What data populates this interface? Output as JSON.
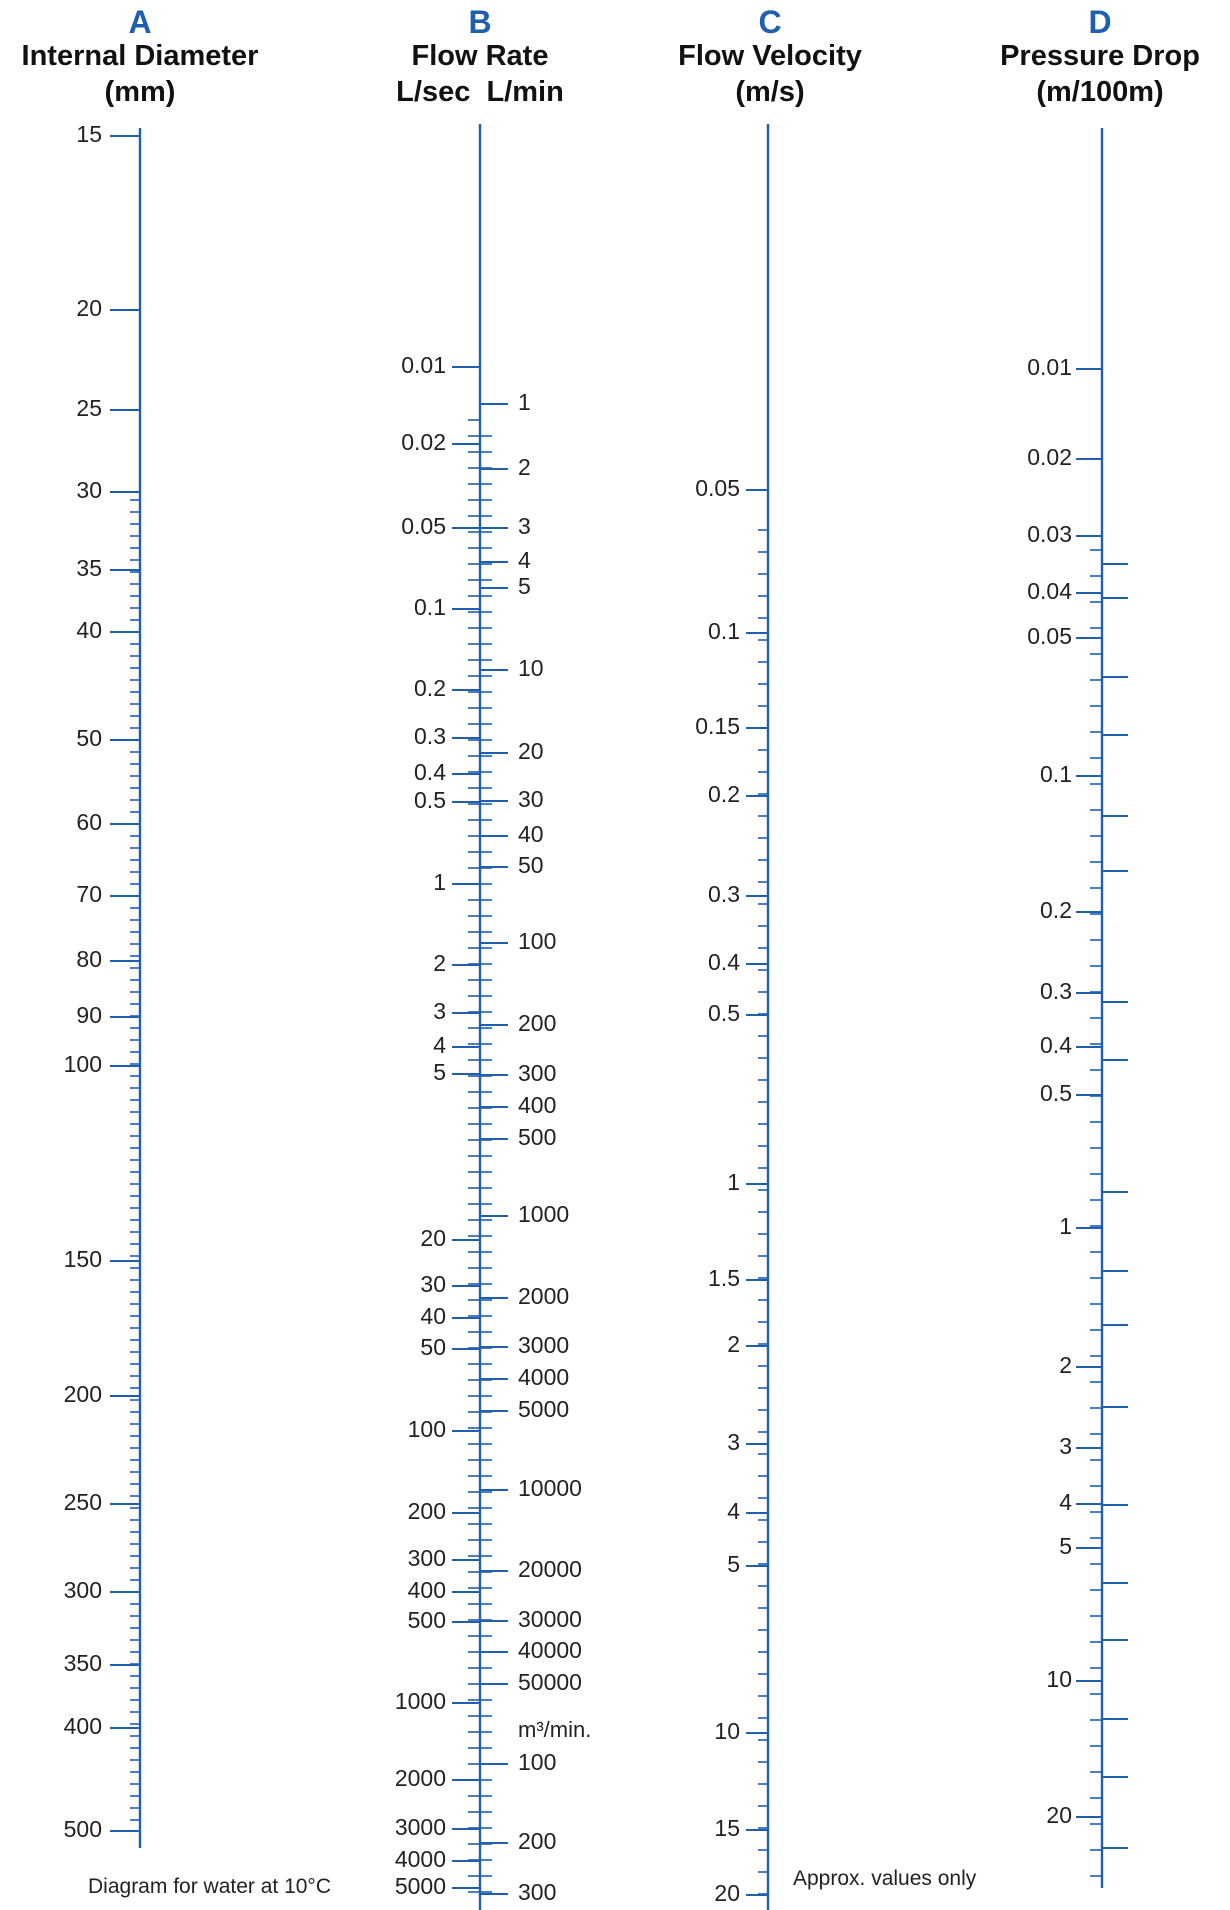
{
  "colors": {
    "axis": "#1f5fb0",
    "label": "#222222",
    "letter": "#1f5fb0"
  },
  "scales": {
    "A": {
      "letter": "A",
      "title": "Internal Diameter",
      "units": "(mm)",
      "labels": [
        "15",
        "20",
        "25",
        "30",
        "35",
        "40",
        "50",
        "60",
        "70",
        "80",
        "90",
        "100",
        "150",
        "200",
        "250",
        "300",
        "350",
        "400",
        "500"
      ]
    },
    "B": {
      "letter": "B",
      "title": "Flow Rate",
      "units_left": "L/sec",
      "units_right": "L/min",
      "left_labels": [
        "0.01",
        "0.02",
        "0.05",
        "0.1",
        "0.2",
        "0.3",
        "0.4",
        "0.5",
        "1",
        "2",
        "3",
        "4",
        "5",
        "20",
        "30",
        "40",
        "50",
        "100",
        "200",
        "300",
        "400",
        "500",
        "1000",
        "2000",
        "3000",
        "4000",
        "5000"
      ],
      "right_labels": [
        "1",
        "2",
        "3",
        "4",
        "5",
        "10",
        "20",
        "30",
        "40",
        "50",
        "100",
        "200",
        "300",
        "400",
        "500",
        "1000",
        "2000",
        "3000",
        "4000",
        "5000",
        "10000",
        "20000",
        "30000",
        "40000",
        "50000",
        "100",
        "200",
        "300"
      ],
      "unit_change": "m³/min."
    },
    "C": {
      "letter": "C",
      "title": "Flow Velocity",
      "units": "(m/s)",
      "labels": [
        "0.05",
        "0.1",
        "0.15",
        "0.2",
        "0.3",
        "0.4",
        "0.5",
        "1",
        "1.5",
        "2",
        "3",
        "4",
        "5",
        "10",
        "15",
        "20"
      ]
    },
    "D": {
      "letter": "D",
      "title": "Pressure Drop",
      "units": "(m/100m)",
      "labels": [
        "0.01",
        "0.02",
        "0.03",
        "0.04",
        "0.05",
        "0.1",
        "0.2",
        "0.3",
        "0.4",
        "0.5",
        "1",
        "2",
        "3",
        "4",
        "5",
        "10",
        "20"
      ]
    }
  },
  "notes": {
    "left": "Diagram for water at 10°C",
    "right": "Approx. values only"
  }
}
